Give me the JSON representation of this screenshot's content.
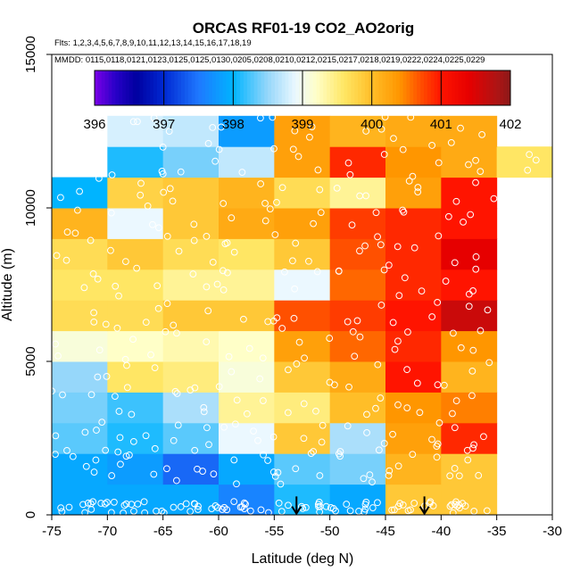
{
  "chart_data": {
    "type": "heatmap",
    "title": "ORCAS RF01-19 CO2_AO2orig",
    "flights_label": "Flts: 1,2,3,4,5,6,7,8,9,10,11,12,13,14,15,16,17,18,19",
    "dates_label": "MMDD: 0115,0118,0121,0123,0125,0125,0130,0205,0208,0210,0212,0215,0217,0218,0219,0222,0224,0225,0229",
    "xlabel": "Latitude (deg N)",
    "ylabel": "Altitude (m)",
    "xlim": [
      -75,
      -30
    ],
    "ylim": [
      0,
      15000
    ],
    "x_ticks": [
      -75,
      -70,
      -65,
      -60,
      -55,
      -50,
      -45,
      -40,
      -35,
      -30
    ],
    "y_ticks": [
      0,
      5000,
      10000,
      15000
    ],
    "x_tick_labels": [
      "-75",
      "-70",
      "-65",
      "-60",
      "-55",
      "-50",
      "-45",
      "-40",
      "-35",
      "-30"
    ],
    "y_tick_labels": [
      "0",
      "5000",
      "10000",
      "15000"
    ],
    "colorbar": {
      "min": 396,
      "max": 402,
      "ticks": [
        396,
        397,
        398,
        399,
        400,
        401,
        402
      ],
      "tick_labels": [
        "396",
        "397",
        "398",
        "399",
        "400",
        "401",
        "402"
      ]
    },
    "bin_width_lat": 5,
    "bin_height_alt": 1000,
    "lat_bins": [
      -75,
      -70,
      -65,
      -60,
      -55,
      -50,
      -45,
      -40,
      -35
    ],
    "grid_co2_ppm": [
      [
        397.9,
        397.9,
        397.9,
        397.6,
        398.1,
        397.9,
        399.9,
        399.9,
        null
      ],
      [
        397.9,
        397.8,
        397.4,
        397.9,
        398.3,
        398.4,
        400.1,
        399.9,
        null
      ],
      [
        398.3,
        398.1,
        398.3,
        398.9,
        399.9,
        398.6,
        400.3,
        400.9,
        null
      ],
      [
        398.4,
        398.2,
        398.6,
        399.4,
        399.5,
        400.0,
        400.4,
        400.5,
        null
      ],
      [
        398.5,
        399.6,
        399.5,
        399.1,
        399.9,
        400.2,
        401.0,
        400.1,
        null
      ],
      [
        399.1,
        399.2,
        399.3,
        399.2,
        400.3,
        400.6,
        400.9,
        400.4,
        null
      ],
      [
        399.7,
        399.7,
        399.9,
        399.9,
        400.7,
        400.8,
        401.0,
        401.6,
        null
      ],
      [
        399.6,
        399.6,
        399.4,
        399.4,
        398.9,
        400.6,
        400.9,
        401.0,
        null
      ],
      [
        399.7,
        399.9,
        399.7,
        399.6,
        399.9,
        400.7,
        400.9,
        401.4,
        null
      ],
      [
        400.1,
        398.9,
        399.9,
        400.2,
        400.3,
        400.8,
        400.9,
        401.0,
        null
      ],
      [
        398.0,
        399.8,
        399.9,
        400.1,
        399.7,
        399.4,
        400.3,
        401.0,
        null
      ],
      [
        null,
        398.1,
        398.4,
        398.7,
        400.3,
        400.9,
        400.4,
        400.2,
        399.6
      ],
      [
        null,
        398.8,
        398.7,
        397.8,
        400.3,
        400.1,
        400.2,
        400.2,
        null
      ]
    ],
    "markers_lat": [
      -53,
      -41.5
    ]
  }
}
